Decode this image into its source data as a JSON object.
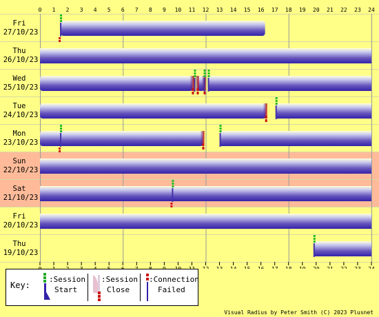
{
  "chart_data": {
    "type": "timeline",
    "x_ticks": [
      "0",
      "1",
      "2",
      "3",
      "4",
      "5",
      "6",
      "7",
      "8",
      "9",
      "10",
      "11",
      "12",
      "13",
      "14",
      "15",
      "16",
      "17",
      "18",
      "19",
      "20",
      "21",
      "22",
      "23",
      "24"
    ],
    "xlim": [
      0,
      24
    ],
    "days": [
      {
        "day": "Fri",
        "date": "27/10/23",
        "weekend": false,
        "sessions": [
          [
            1.5,
            16.3
          ]
        ],
        "starts": [
          1.5
        ],
        "closes": [],
        "failed": [
          1.4
        ]
      },
      {
        "day": "Thu",
        "date": "26/10/23",
        "weekend": false,
        "sessions": [
          [
            0,
            24
          ]
        ],
        "starts": [],
        "closes": [],
        "failed": []
      },
      {
        "day": "Wed",
        "date": "25/10/23",
        "weekend": false,
        "sessions": [
          [
            0,
            11.05
          ],
          [
            11.4,
            11.9
          ],
          [
            12.2,
            24
          ]
        ],
        "starts": [
          11.2,
          11.9,
          12.2
        ],
        "closes": [
          11.05,
          11.4,
          11.9
        ],
        "failed": []
      },
      {
        "day": "Tue",
        "date": "24/10/23",
        "weekend": false,
        "sessions": [
          [
            0,
            16.35
          ],
          [
            17.1,
            24
          ]
        ],
        "starts": [
          17.1
        ],
        "closes": [
          16.35
        ],
        "failed": []
      },
      {
        "day": "Mon",
        "date": "23/10/23",
        "weekend": false,
        "sessions": [
          [
            0,
            11.8
          ],
          [
            13.05,
            24
          ]
        ],
        "starts": [
          1.5,
          13.05
        ],
        "closes": [
          11.8
        ],
        "failed": [
          1.4
        ]
      },
      {
        "day": "Sun",
        "date": "22/10/23",
        "weekend": true,
        "sessions": [
          [
            0,
            24
          ]
        ],
        "starts": [],
        "closes": [],
        "failed": []
      },
      {
        "day": "Sat",
        "date": "21/10/23",
        "weekend": true,
        "sessions": [
          [
            0,
            24
          ]
        ],
        "starts": [
          9.6
        ],
        "closes": [],
        "failed": [
          9.5
        ]
      },
      {
        "day": "Fri",
        "date": "20/10/23",
        "weekend": false,
        "sessions": [
          [
            0,
            24
          ]
        ],
        "starts": [],
        "closes": [],
        "failed": []
      },
      {
        "day": "Thu",
        "date": "19/10/23",
        "weekend": false,
        "sessions": [
          [
            19.85,
            24
          ]
        ],
        "starts": [
          19.85
        ],
        "closes": [],
        "failed": []
      }
    ]
  },
  "key": {
    "title": "Key:",
    "start_line1": ":Session",
    "start_line2": "Start",
    "close_line1": ":Session",
    "close_line2": "Close",
    "failed_line1": ":Connection",
    "failed_line2": "Failed"
  },
  "footer": "Visual Radius by Peter Smith (C) 2023 Plusnet",
  "colors": {
    "background": "#ffff88",
    "weekend": "#ffbb99",
    "session_edge": "#4433aa",
    "session_mid": "#ffffdd",
    "start_marker": "#22bb22",
    "close_marker": "#cc1111"
  }
}
